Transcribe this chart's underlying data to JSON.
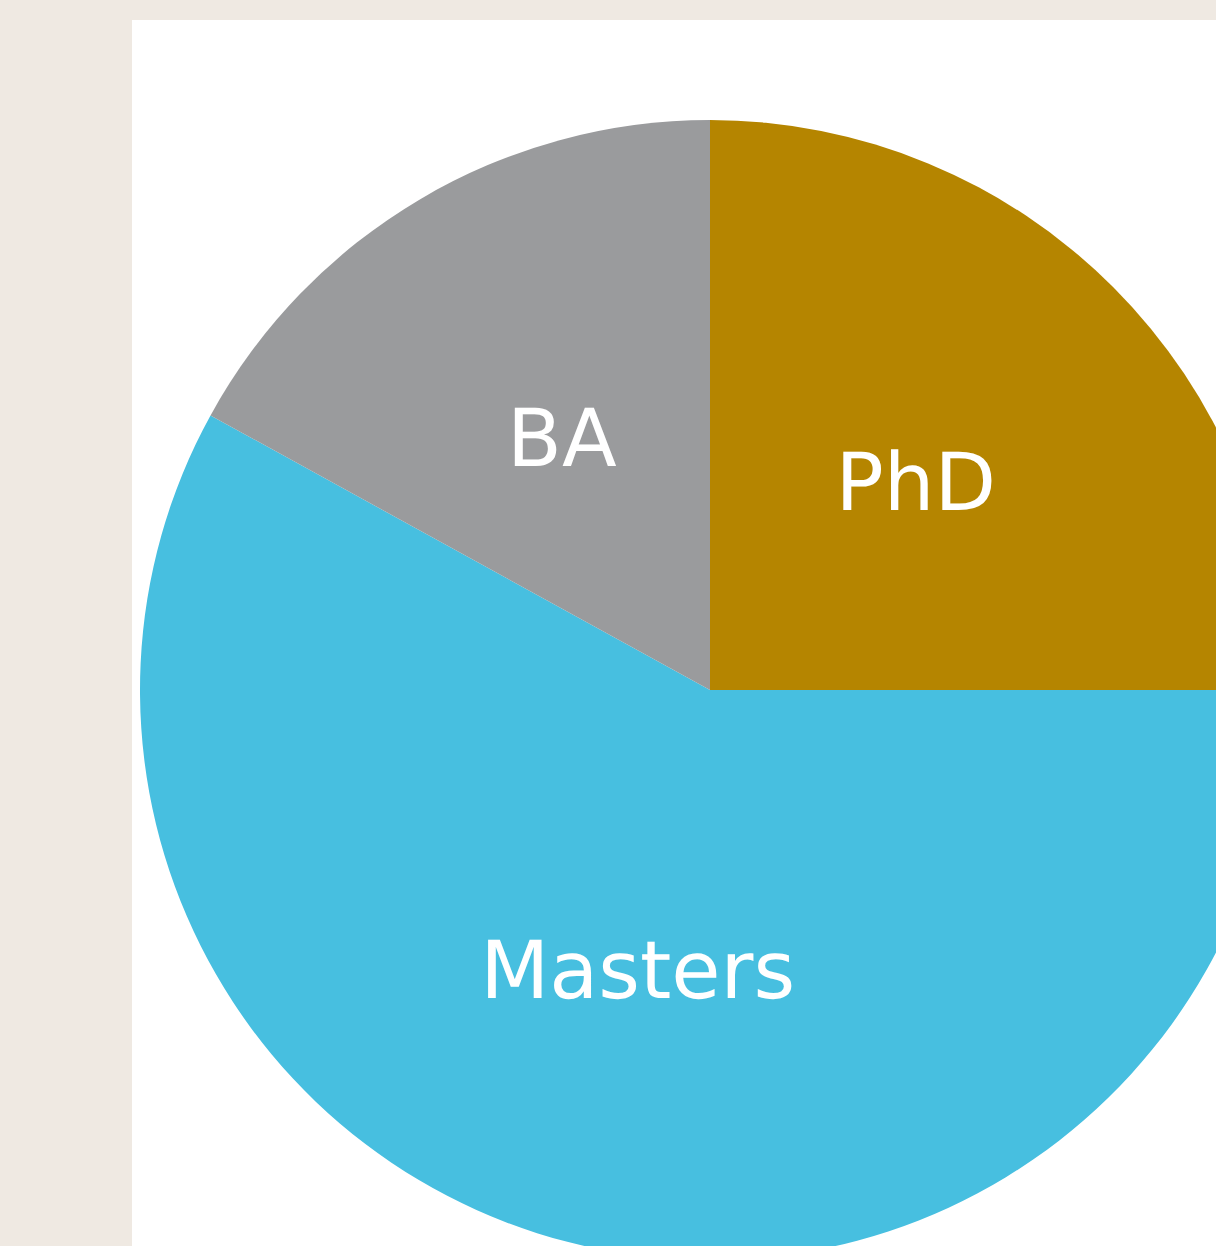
{
  "chart_data": {
    "type": "pie",
    "categories": [
      "PhD",
      "Masters",
      "BA"
    ],
    "values": [
      25,
      58,
      17
    ],
    "colors": [
      "#b58500",
      "#47bfe0",
      "#9a9b9d"
    ],
    "legend": false
  }
}
